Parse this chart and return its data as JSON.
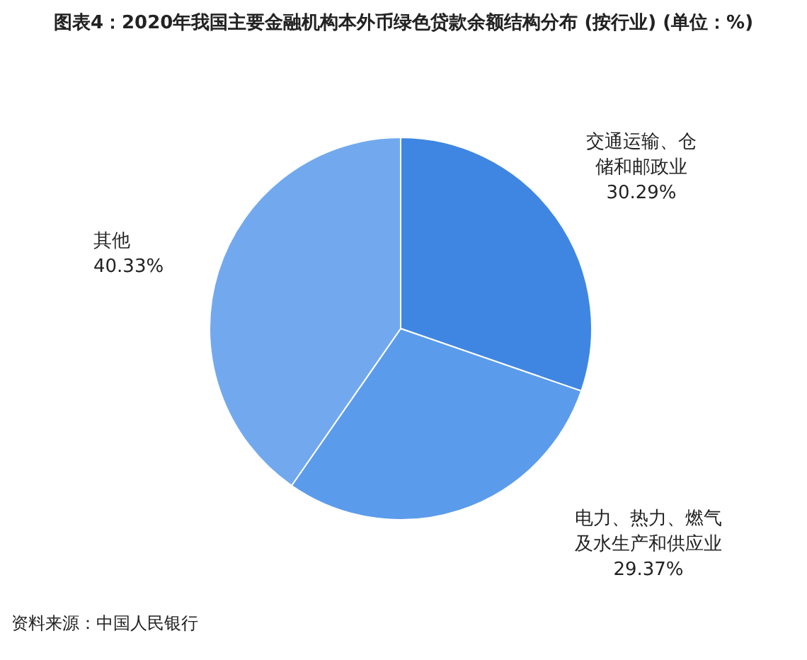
{
  "chart_data": {
    "type": "pie",
    "title": "图表4：2020年我国主要金融机构本外币绿色贷款余额结构分布 (按行业) (单位：%)",
    "categories": [
      "交通运输、仓储和邮政业",
      "电力、热力、燃气及水生产和供应业",
      "其他"
    ],
    "values": [
      30.29,
      29.37,
      40.33
    ],
    "colors": [
      "#3f86e2",
      "#5b9beb",
      "#72a9ee"
    ],
    "value_labels": [
      "30.29%",
      "29.37%",
      "40.33%"
    ],
    "annotations": [
      "资料来源：中国人民银行"
    ]
  }
}
